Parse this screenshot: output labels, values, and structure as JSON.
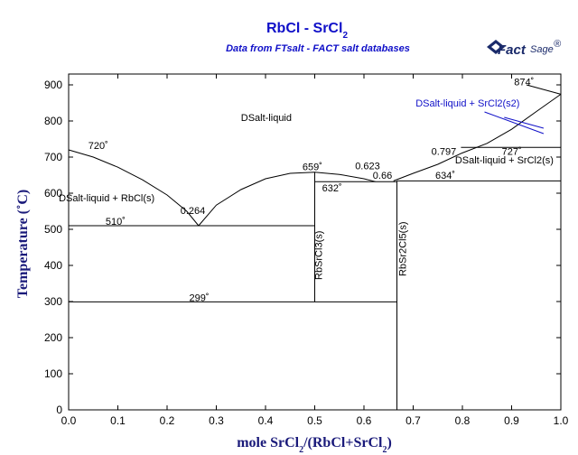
{
  "chart_data": {
    "type": "phase-diagram",
    "title": "RbCl - SrCl",
    "title_sub": "2",
    "subtitle": "Data from FTsalt - FACT salt databases",
    "logo": {
      "text_main": "Fact",
      "text_sage": "Sage",
      "mark": "®",
      "icon": "factsage-logo-icon"
    },
    "ylabel": "Temperature (˚C)",
    "xlabel_parts": [
      "mole SrCl",
      "2",
      "/(RbCl+SrCl",
      "2",
      ")"
    ],
    "xlim": [
      0,
      1
    ],
    "ylim": [
      0,
      930
    ],
    "xticks": [
      0.0,
      0.1,
      0.2,
      0.3,
      0.4,
      0.5,
      0.6,
      0.7,
      0.8,
      0.9,
      1.0
    ],
    "xtick_labels": [
      "0.0",
      "0.1",
      "0.2",
      "0.3",
      "0.4",
      "0.5",
      "0.6",
      "0.7",
      "0.8",
      "0.9",
      "1.0"
    ],
    "yticks": [
      0,
      100,
      200,
      300,
      400,
      500,
      600,
      700,
      800,
      900
    ],
    "ytick_labels": [
      "0",
      "100",
      "200",
      "300",
      "400",
      "500",
      "600",
      "700",
      "800",
      "900"
    ],
    "lines": [
      {
        "name": "liquidus-rbcl",
        "points": [
          [
            0,
            720
          ],
          [
            0.05,
            700
          ],
          [
            0.1,
            672
          ],
          [
            0.15,
            637
          ],
          [
            0.2,
            595
          ],
          [
            0.24,
            550
          ],
          [
            0.264,
            510
          ]
        ]
      },
      {
        "name": "liquidus-rbsrcl3",
        "points": [
          [
            0.264,
            510
          ],
          [
            0.3,
            567
          ],
          [
            0.35,
            610
          ],
          [
            0.4,
            640
          ],
          [
            0.45,
            655
          ],
          [
            0.5,
            658
          ],
          [
            0.55,
            652
          ],
          [
            0.6,
            640
          ],
          [
            0.623,
            632
          ]
        ]
      },
      {
        "name": "liquidus-rbsr2cl5",
        "points": [
          [
            0.66,
            634
          ],
          [
            0.7,
            655
          ],
          [
            0.75,
            680
          ],
          [
            0.797,
            710
          ]
        ]
      },
      {
        "name": "liquidus-srcl2",
        "points": [
          [
            0.797,
            710
          ],
          [
            0.85,
            738
          ],
          [
            0.9,
            777
          ],
          [
            0.95,
            826
          ],
          [
            1.0,
            874
          ]
        ]
      },
      {
        "name": "eutectic-510",
        "points": [
          [
            0,
            510
          ],
          [
            0.5,
            510
          ]
        ]
      },
      {
        "name": "eutectic-299",
        "points": [
          [
            0,
            299
          ],
          [
            0.667,
            299
          ]
        ]
      },
      {
        "name": "eutectic-632",
        "points": [
          [
            0.5,
            632
          ],
          [
            0.667,
            632
          ]
        ]
      },
      {
        "name": "eutectic-634",
        "points": [
          [
            0.667,
            634
          ],
          [
            1.0,
            634
          ]
        ]
      },
      {
        "name": "transition-727",
        "points": [
          [
            0.797,
            727
          ],
          [
            1.0,
            727
          ]
        ]
      },
      {
        "name": "compound-rbsrcl3",
        "points": [
          [
            0.5,
            299
          ],
          [
            0.5,
            658
          ]
        ]
      },
      {
        "name": "compound-rbsr2cl5",
        "points": [
          [
            0.667,
            0
          ],
          [
            0.667,
            634
          ]
        ]
      },
      {
        "name": "inversion-874",
        "points": [
          [
            0.93,
            900
          ],
          [
            1.0,
            874
          ]
        ]
      }
    ],
    "annotations": [
      {
        "text": "720˚",
        "x": 0.04,
        "y": 722
      },
      {
        "text": "DSalt-liquid",
        "x": 0.35,
        "y": 800
      },
      {
        "text": "DSalt-liquid + RbCl(s)",
        "x": -0.02,
        "y": 578
      },
      {
        "text": "0.264",
        "x": 0.227,
        "y": 542
      },
      {
        "text": "510˚",
        "x": 0.075,
        "y": 513
      },
      {
        "text": "659˚",
        "x": 0.475,
        "y": 664
      },
      {
        "text": "0.623",
        "x": 0.582,
        "y": 666
      },
      {
        "text": "632˚",
        "x": 0.515,
        "y": 605
      },
      {
        "text": "0.66",
        "x": 0.618,
        "y": 640
      },
      {
        "text": "634˚",
        "x": 0.745,
        "y": 640
      },
      {
        "text": "0.797",
        "x": 0.737,
        "y": 706
      },
      {
        "text": "727˚",
        "x": 0.88,
        "y": 706
      },
      {
        "text": "DSalt-liquid + SrCl2(s)",
        "x": 0.785,
        "y": 683
      },
      {
        "text": "874˚",
        "x": 0.905,
        "y": 899
      },
      {
        "text": "299˚",
        "x": 0.245,
        "y": 301
      },
      {
        "text": "RbSrCl3(s)",
        "x": 0.515,
        "y": 360,
        "rotate": true
      },
      {
        "text": "RbSr2Cl5(s)",
        "x": 0.685,
        "y": 370,
        "rotate": true
      }
    ],
    "blue_annotation": {
      "text": "DSalt-liquid + SrCl2(s2)",
      "x": 0.705,
      "y": 840
    },
    "blue_lines": [
      {
        "points": [
          [
            0.845,
            825
          ],
          [
            0.965,
            765
          ]
        ]
      },
      {
        "points": [
          [
            0.885,
            810
          ],
          [
            0.965,
            780
          ]
        ]
      }
    ],
    "grid": false
  }
}
